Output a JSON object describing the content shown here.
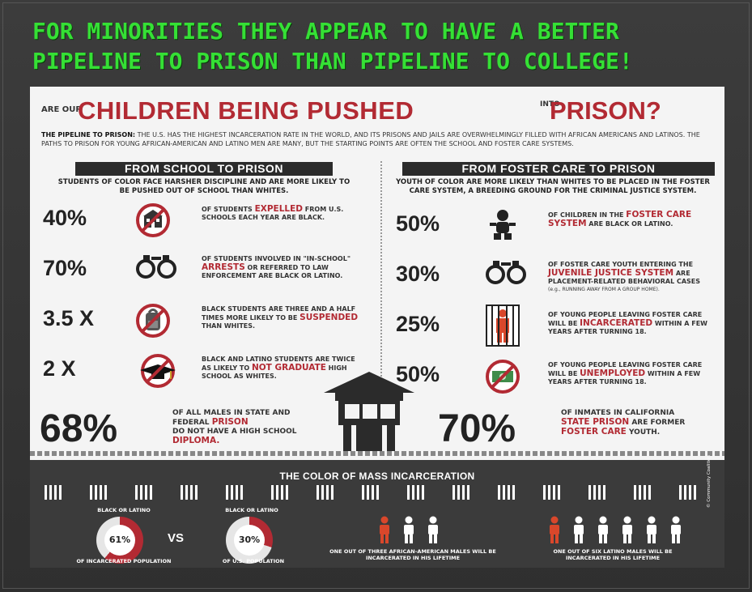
{
  "headline": {
    "line1": "FOR MINORITIES THEY APPEAR TO HAVE A BETTER",
    "line2": "PIPELINE TO PRISON THAN  PIPELINE TO COLLEGE!"
  },
  "poster": {
    "title_prefix": "ARE OUR",
    "title_main": "CHILDREN BEING PUSHED",
    "title_into": "INTO",
    "title_end": "PRISON?",
    "intro_lead": "THE PIPELINE TO PRISON:",
    "intro_text": "THE U.S. HAS THE HIGHEST INCARCERATION RATE IN THE WORLD, AND ITS PRISONS AND JAILS ARE OVERWHELMINGLY FILLED WITH AFRICAN AMERICANS AND LATINOS. THE PATHS TO PRISON FOR YOUNG AFRICAN-AMERICAN AND LATINO MEN ARE MANY, BUT THE STARTING POINTS ARE OFTEN THE SCHOOL AND FOSTER CARE SYSTEMS.",
    "left": {
      "heading": "FROM  SCHOOL TO PRISON",
      "sub": "STUDENTS OF COLOR FACE HARSHER DISCIPLINE AND ARE MORE LIKELY TO BE PUSHED OUT OF SCHOOL THAN WHITES.",
      "stats": [
        {
          "value": "40%",
          "pre": "OF STUDENTS",
          "hl": "EXPELLED",
          "post": "FROM U.S. SCHOOLS EACH YEAR ARE BLACK.",
          "icon": "school-icon"
        },
        {
          "value": "70%",
          "pre": "OF STUDENTS INVOLVED IN \"IN-SCHOOL\"",
          "hl": "ARRESTS",
          "post": "OR REFERRED TO LAW ENFORCEMENT ARE BLACK OR LATINO.",
          "icon": "handcuffs-icon"
        },
        {
          "value": "3.5 X",
          "pre": "BLACK STUDENTS ARE THREE AND A HALF TIMES MORE LIKELY TO BE",
          "hl": "SUSPENDED",
          "post": "THAN WHITES.",
          "icon": "backpack-icon"
        },
        {
          "value": "2 X",
          "pre": "BLACK AND LATINO STUDENTS ARE TWICE AS LIKELY TO",
          "hl": "NOT GRADUATE",
          "post": "HIGH SCHOOL AS WHITES.",
          "icon": "grad-cap-icon"
        }
      ],
      "big": {
        "value": "68%",
        "pre": "OF ALL MALES IN STATE AND FEDERAL",
        "hl": "PRISON",
        "mid": "DO NOT HAVE A HIGH SCHOOL",
        "hl2": "DIPLOMA."
      }
    },
    "right": {
      "heading": "FROM  FOSTER CARE TO PRISON",
      "sub": "YOUTH OF COLOR ARE MORE LIKELY THAN WHITES TO BE PLACED IN THE FOSTER CARE SYSTEM, A BREEDING GROUND FOR THE CRIMINAL JUSTICE SYSTEM.",
      "stats": [
        {
          "value": "50%",
          "pre": "OF CHILDREN IN THE",
          "hl": "FOSTER CARE SYSTEM",
          "post": "ARE BLACK OR LATINO.",
          "icon": "baby-icon"
        },
        {
          "value": "30%",
          "pre": "OF FOSTER CARE YOUTH ENTERING THE",
          "hl": "JUVENILE JUSTICE SYSTEM",
          "post": "ARE PLACEMENT-RELATED BEHAVIORAL CASES",
          "note": "(e.g., RUNNING AWAY FROM A GROUP HOME).",
          "icon": "handcuffs-icon"
        },
        {
          "value": "25%",
          "pre": "OF YOUNG PEOPLE LEAVING FOSTER CARE WILL BE",
          "hl": "INCARCERATED",
          "post": "WITHIN A FEW YEARS AFTER TURNING 18.",
          "icon": "prisoner-icon"
        },
        {
          "value": "50%",
          "pre": "OF YOUNG PEOPLE LEAVING FOSTER CARE WILL BE",
          "hl": "UNEMPLOYED",
          "post": "WITHIN A FEW YEARS AFTER TURNING 18.",
          "icon": "money-icon"
        }
      ],
      "big": {
        "value": "70%",
        "pre": "OF INMATES IN CALIFORNIA",
        "hl": "STATE PRISON",
        "mid": "ARE FORMER",
        "hl2": "FOSTER CARE",
        "post": "YOUTH."
      }
    },
    "band": {
      "title": "THE COLOR OF MASS INCARCERATION",
      "donut1": {
        "top_label": "BLACK OR LATINO",
        "value": "61%",
        "fraction": 0.61,
        "bottom_label": "OF INCARCERATED POPULATION"
      },
      "vs": "VS",
      "donut2": {
        "top_label": "BLACK OR LATINO",
        "value": "30%",
        "fraction": 0.3,
        "bottom_label": "OF U.S. POPULATION"
      },
      "group1_label": "ONE OUT OF THREE AFRICAN-AMERICAN MALES WILL BE INCARCERATED IN HIS LIFETIME",
      "group1_total": 3,
      "group2_label": "ONE OUT OF SIX LATINO MALES WILL BE INCARCERATED IN HIS LIFETIME",
      "group2_total": 6,
      "credit": "© Community Coalition"
    }
  },
  "colors": {
    "headline": "#35e035",
    "accent": "#b22a33",
    "dark": "#2b2b2b",
    "person_highlight": "#d9472b"
  }
}
